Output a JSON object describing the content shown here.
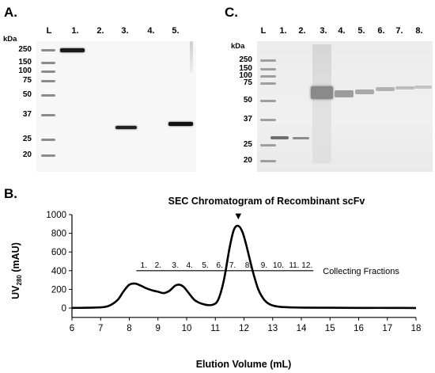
{
  "panel_a": {
    "letter": "A.",
    "lanes": [
      "L",
      "1.",
      "2.",
      "3.",
      "4.",
      "5."
    ],
    "unit": "kDa",
    "markers": [
      "250",
      "150",
      "100",
      "75",
      "50",
      "37",
      "25",
      "20"
    ]
  },
  "panel_c": {
    "letter": "C.",
    "lanes": [
      "L",
      "1.",
      "2.",
      "3.",
      "4.",
      "5.",
      "6.",
      "7.",
      "8."
    ],
    "unit": "kDa",
    "markers": [
      "250",
      "150",
      "100",
      "75",
      "50",
      "37",
      "25",
      "20"
    ]
  },
  "panel_b": {
    "letter": "B."
  },
  "chart_data": {
    "type": "line",
    "title": "SEC Chromatogram of Recombinant scFv",
    "xlabel": "Elution Volume (mL)",
    "ylabel_prefix": "UV",
    "ylabel_sub": "280",
    "ylabel_suffix": " (mAU)",
    "xlim": [
      6,
      18
    ],
    "ylim": [
      -100,
      1000
    ],
    "xticks": [
      6,
      7,
      8,
      9,
      10,
      11,
      12,
      13,
      14,
      15,
      16,
      17,
      18
    ],
    "yticks": [
      0,
      200,
      400,
      600,
      800,
      1000
    ],
    "grid": false,
    "series": [
      {
        "x": [
          6.0,
          6.5,
          7.0,
          7.3,
          7.6,
          7.8,
          8.0,
          8.2,
          8.4,
          8.6,
          8.8,
          9.0,
          9.2,
          9.4,
          9.6,
          9.75,
          9.9,
          10.1,
          10.3,
          10.6,
          10.9,
          11.1,
          11.3,
          11.5,
          11.65,
          11.8,
          11.95,
          12.1,
          12.3,
          12.5,
          12.7,
          12.9,
          13.2,
          13.6,
          14.0,
          15.0,
          16.0,
          17.0,
          18.0
        ],
        "y": [
          2,
          3,
          8,
          25,
          90,
          180,
          250,
          262,
          240,
          210,
          190,
          175,
          160,
          185,
          240,
          250,
          225,
          150,
          80,
          40,
          35,
          90,
          300,
          650,
          840,
          880,
          810,
          650,
          400,
          200,
          90,
          40,
          15,
          8,
          5,
          3,
          2,
          2,
          1
        ]
      }
    ],
    "fractions": {
      "label": "Collecting Fractions",
      "y": 400,
      "x_range": [
        8.3,
        14.2
      ],
      "items": [
        {
          "label": "1.",
          "x": 8.5
        },
        {
          "label": "2.",
          "x": 9.0
        },
        {
          "label": "3.",
          "x": 9.6
        },
        {
          "label": "4.",
          "x": 10.1
        },
        {
          "label": "5.",
          "x": 10.65
        },
        {
          "label": "6.",
          "x": 11.15
        },
        {
          "label": "7.",
          "x": 11.6
        },
        {
          "label": "8.",
          "x": 12.15
        },
        {
          "label": "9.",
          "x": 12.7
        },
        {
          "label": "10.",
          "x": 13.2
        },
        {
          "label": "11.",
          "x": 13.75
        },
        {
          "label": "12.",
          "x": 14.2
        }
      ]
    },
    "peak_marker": {
      "x": 11.8,
      "symbol": "▼"
    }
  }
}
